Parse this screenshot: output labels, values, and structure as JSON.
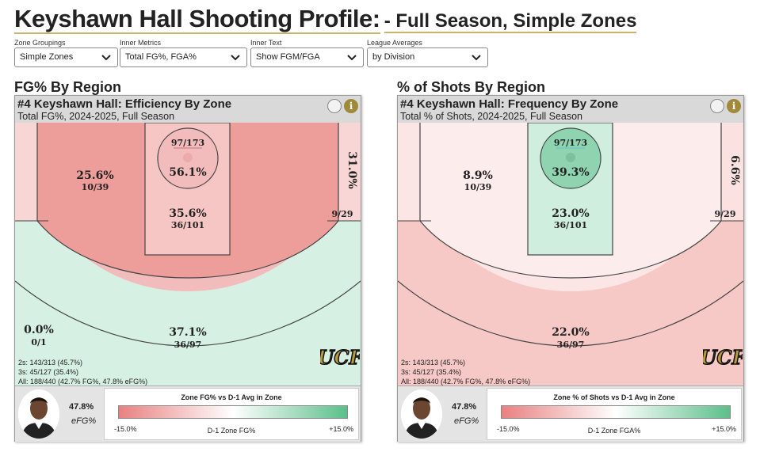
{
  "header": {
    "title": "Keyshawn Hall Shooting Profile:",
    "subtitle": "- Full Season, Simple Zones"
  },
  "filters": [
    {
      "label": "Zone Groupings",
      "value": "Simple Zones"
    },
    {
      "label": "Inner Metrics",
      "value": "Total FG%, FGA%"
    },
    {
      "label": "Inner Text",
      "value": "Show FGM/FGA"
    },
    {
      "label": "League Averages",
      "value": "by Division"
    }
  ],
  "colors": {
    "accent_gold": "#c9b36a",
    "cold": "#e98080",
    "hot": "#5bbf8a"
  },
  "left": {
    "section_title": "FG% By Region",
    "panel_title": "#4 Keyshawn Hall: Efficiency By Zone",
    "panel_subtitle": "Total FG%, 2024-2025, Full Season",
    "zones": {
      "rim": {
        "main": "56.1%",
        "sub": "97/173"
      },
      "paint": {
        "main": "35.6%",
        "sub": "36/101"
      },
      "midrange": {
        "main": "25.6%",
        "sub": "10/39"
      },
      "corner_right": {
        "main": "31.0%",
        "sub": "9/29"
      },
      "corner_left": {
        "main": "0.0%",
        "sub": "0/1"
      },
      "three": {
        "main": "37.1%",
        "sub": "36/97"
      }
    },
    "stats": {
      "twos": "2s: 143/313 (45.7%)",
      "threes": "3s: 45/127 (35.4%)",
      "all": "All: 188/440 (42.7% FG%, 47.8% eFG%)"
    },
    "efg_value": "47.8%",
    "efg_label": "eFG%",
    "legend": {
      "title": "Zone FG% vs D-1 Avg in Zone",
      "left": "-15.0%",
      "mid": "D-1 Zone FG%",
      "right": "+15.0%"
    }
  },
  "right": {
    "section_title": "% of Shots By Region",
    "panel_title": "#4 Keyshawn Hall: Frequency By Zone",
    "panel_subtitle": "Total % of Shots, 2024-2025, Full Season",
    "zones": {
      "rim": {
        "main": "39.3%",
        "sub": "97/173"
      },
      "paint": {
        "main": "23.0%",
        "sub": "36/101"
      },
      "midrange": {
        "main": "8.9%",
        "sub": "10/39"
      },
      "corner_right": {
        "main": "6.6%",
        "sub": "9/29"
      },
      "three": {
        "main": "22.0%",
        "sub": "36/97"
      }
    },
    "stats": {
      "twos": "2s: 143/313 (45.7%)",
      "threes": "3s: 45/127 (35.4%)",
      "all": "All: 188/440 (42.7% FG%, 47.8% eFG%)"
    },
    "efg_value": "47.8%",
    "efg_label": "eFG%",
    "legend": {
      "title": "Zone % of Shots vs D-1 Avg in Zone",
      "left": "-15.0%",
      "mid": "D-1 Zone FGA%",
      "right": "+15.0%"
    }
  },
  "logo_text": "UCF"
}
